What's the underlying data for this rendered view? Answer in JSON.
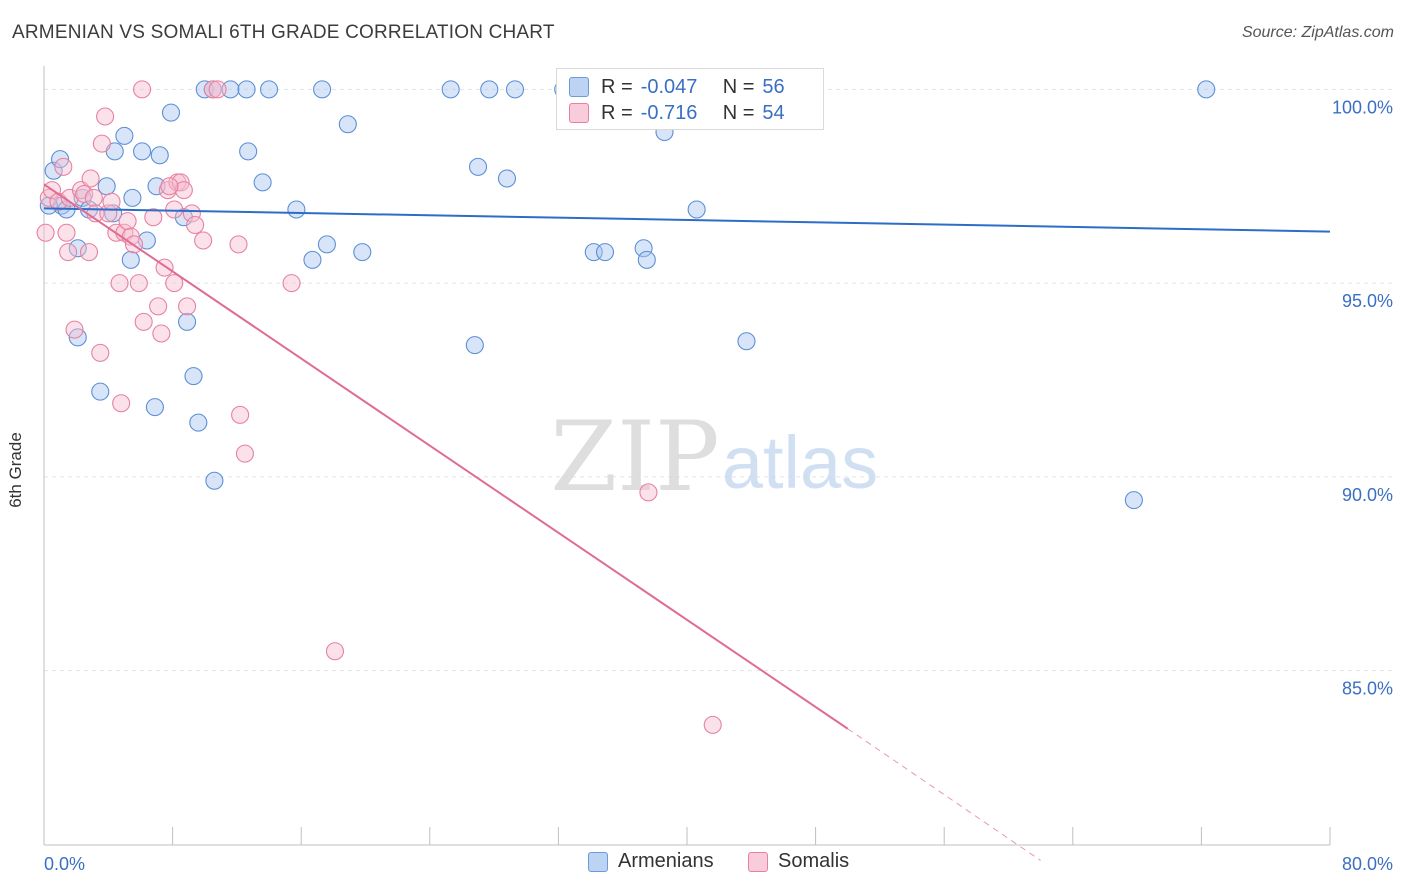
{
  "title": "ARMENIAN VS SOMALI 6TH GRADE CORRELATION CHART",
  "source": "Source: ZipAtlas.com",
  "watermark": {
    "zip": "ZIP",
    "atlas": "atlas"
  },
  "colors": {
    "armenian_fill": "#a9c6ef",
    "armenian_stroke": "#5b8fd6",
    "armenian_line": "#2d6cc7",
    "somali_fill": "#f7bcd0",
    "somali_stroke": "#e7819f",
    "somali_line": "#e06b93",
    "axis_text": "#3a6fc4",
    "grid": "#e2e2e2"
  },
  "legend": {
    "armenians": {
      "r_label": "R =",
      "r_value": "-0.047",
      "n_label": "N =",
      "n_value": "56",
      "name": "Armenians"
    },
    "somalis": {
      "r_label": "R =",
      "r_value": "-0.716",
      "n_label": "N =",
      "n_value": "54",
      "name": "Somalis"
    }
  },
  "chart_data": {
    "type": "scatter",
    "title": "ARMENIAN VS SOMALI 6TH GRADE CORRELATION CHART",
    "xlabel": "",
    "ylabel": "6th Grade",
    "xlim": [
      0,
      80
    ],
    "ylim": [
      80.5,
      100.5
    ],
    "x_tick_labels": [
      "0.0%",
      "80.0%"
    ],
    "y_ticks": [
      85,
      90,
      95,
      100
    ],
    "y_tick_labels": [
      "85.0%",
      "90.0%",
      "95.0%",
      "100.0%"
    ],
    "x_minor_ticks": [
      0,
      8,
      16,
      24,
      32,
      40,
      48,
      56,
      64,
      72,
      80
    ],
    "series": [
      {
        "name": "Armenians",
        "trend": {
          "x0": 0,
          "y0": 96.93,
          "x1": 80,
          "y1": 96.33
        },
        "points": [
          [
            0.6,
            97.9
          ],
          [
            1.0,
            98.2
          ],
          [
            1.1,
            97.0
          ],
          [
            1.4,
            96.9
          ],
          [
            2.1,
            95.9
          ],
          [
            2.1,
            93.6
          ],
          [
            2.4,
            97.2
          ],
          [
            2.8,
            96.9
          ],
          [
            3.5,
            92.2
          ],
          [
            3.9,
            97.5
          ],
          [
            4.3,
            96.8
          ],
          [
            4.4,
            98.4
          ],
          [
            5.0,
            98.8
          ],
          [
            5.4,
            95.6
          ],
          [
            5.5,
            97.2
          ],
          [
            6.1,
            98.4
          ],
          [
            6.4,
            96.1
          ],
          [
            6.9,
            91.8
          ],
          [
            7.0,
            97.5
          ],
          [
            7.2,
            98.3
          ],
          [
            7.9,
            99.4
          ],
          [
            8.7,
            96.7
          ],
          [
            8.9,
            94.0
          ],
          [
            9.3,
            92.6
          ],
          [
            9.6,
            91.4
          ],
          [
            10.0,
            100.0
          ],
          [
            10.5,
            100.0
          ],
          [
            10.6,
            89.9
          ],
          [
            11.6,
            100.0
          ],
          [
            12.6,
            100.0
          ],
          [
            12.7,
            98.4
          ],
          [
            13.6,
            97.6
          ],
          [
            14.0,
            100.0
          ],
          [
            15.7,
            96.9
          ],
          [
            16.7,
            95.6
          ],
          [
            17.3,
            100.0
          ],
          [
            17.6,
            96.0
          ],
          [
            18.9,
            99.1
          ],
          [
            19.8,
            95.8
          ],
          [
            25.3,
            100.0
          ],
          [
            26.8,
            93.4
          ],
          [
            27.0,
            98.0
          ],
          [
            27.7,
            100.0
          ],
          [
            28.8,
            97.7
          ],
          [
            29.3,
            100.0
          ],
          [
            32.3,
            100.0
          ],
          [
            34.2,
            95.8
          ],
          [
            34.9,
            95.8
          ],
          [
            37.3,
            95.9
          ],
          [
            37.5,
            95.6
          ],
          [
            38.6,
            98.9
          ],
          [
            40.6,
            96.9
          ],
          [
            43.7,
            93.5
          ],
          [
            67.8,
            89.4
          ],
          [
            72.3,
            100.0
          ],
          [
            0.3,
            97.0
          ]
        ]
      },
      {
        "name": "Somalis",
        "trend": {
          "x0": 0,
          "y0": 97.55,
          "x1": 50,
          "y1": 83.5,
          "dash_to_x": 62,
          "dash_to_y": 80.1
        },
        "points": [
          [
            0.1,
            96.3
          ],
          [
            0.3,
            97.2
          ],
          [
            0.5,
            97.4
          ],
          [
            0.9,
            97.1
          ],
          [
            1.2,
            98.0
          ],
          [
            1.4,
            96.3
          ],
          [
            1.5,
            95.8
          ],
          [
            1.6,
            97.2
          ],
          [
            1.9,
            93.8
          ],
          [
            2.3,
            97.4
          ],
          [
            2.5,
            97.3
          ],
          [
            2.8,
            95.8
          ],
          [
            2.9,
            97.7
          ],
          [
            3.1,
            97.2
          ],
          [
            3.2,
            96.8
          ],
          [
            3.5,
            93.2
          ],
          [
            3.6,
            98.6
          ],
          [
            3.8,
            99.3
          ],
          [
            4.0,
            96.8
          ],
          [
            4.2,
            97.1
          ],
          [
            4.5,
            96.3
          ],
          [
            4.7,
            95.0
          ],
          [
            4.8,
            91.9
          ],
          [
            5.0,
            96.3
          ],
          [
            5.2,
            96.6
          ],
          [
            5.4,
            96.2
          ],
          [
            5.6,
            96.0
          ],
          [
            5.9,
            95.0
          ],
          [
            6.1,
            100.0
          ],
          [
            6.2,
            94.0
          ],
          [
            6.8,
            96.7
          ],
          [
            7.1,
            94.4
          ],
          [
            7.3,
            93.7
          ],
          [
            7.5,
            95.4
          ],
          [
            7.7,
            97.4
          ],
          [
            8.1,
            96.9
          ],
          [
            8.1,
            95.0
          ],
          [
            8.3,
            97.6
          ],
          [
            8.5,
            97.6
          ],
          [
            8.7,
            97.4
          ],
          [
            8.9,
            94.4
          ],
          [
            9.2,
            96.8
          ],
          [
            9.4,
            96.5
          ],
          [
            9.9,
            96.1
          ],
          [
            10.5,
            100.0
          ],
          [
            10.8,
            100.0
          ],
          [
            12.1,
            96.0
          ],
          [
            12.2,
            91.6
          ],
          [
            12.5,
            90.6
          ],
          [
            15.4,
            95.0
          ],
          [
            18.1,
            85.5
          ],
          [
            37.6,
            89.6
          ],
          [
            41.6,
            83.6
          ],
          [
            7.8,
            97.5
          ]
        ]
      }
    ]
  }
}
